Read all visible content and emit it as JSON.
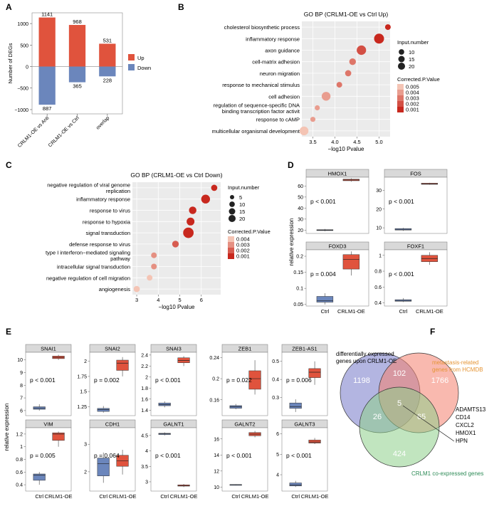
{
  "chart_data": [
    {
      "panel": "A",
      "type": "bar",
      "ylabel": "Number of DEGs",
      "categories": [
        "CRLM1-OE vs Anti",
        "CRLM1-OE vs Ctrl",
        "overlap"
      ],
      "series": [
        {
          "name": "Up",
          "values": [
            1141,
            968,
            531
          ],
          "color": "#E0533D"
        },
        {
          "name": "Down",
          "values": [
            -887,
            -365,
            -228
          ],
          "color": "#6B86BC"
        }
      ],
      "value_labels": {
        "up": [
          "1141",
          "968",
          "531"
        ],
        "down": [
          "887",
          "365",
          "228"
        ]
      },
      "yticks": [
        1000,
        500,
        0,
        -500,
        -1000
      ],
      "ytick_labels": [
        "1000",
        "500",
        "0",
        "−500",
        "−1000"
      ],
      "ylim": [
        -1100,
        1250
      ],
      "legend": "right"
    },
    {
      "panel": "B",
      "type": "scatter",
      "title": "GO BP (CRLM1-OE vs Ctrl Up)",
      "xlabel": "−log10 Pvalue",
      "xticks": [
        3.5,
        4.0,
        4.5,
        5.0
      ],
      "xtick_labels": [
        "3.5",
        "4.0",
        "4.5",
        "5.0"
      ],
      "xlim": [
        3.25,
        5.25
      ],
      "terms": [
        "cholesterol biosynthetic process",
        "inflammatory response",
        "axon guidance",
        "cell-matrix adhesion",
        "neuron migration",
        "response to mechanical stimulus",
        "cell adhesion",
        "regulation of sequence-specific DNA binding transcription factor activit",
        "response to cAMP",
        "multicellular organismal development"
      ],
      "term_lines": [
        [
          "cholesterol biosynthetic process"
        ],
        [
          "inflammatory response"
        ],
        [
          "axon guidance"
        ],
        [
          "cell-matrix adhesion"
        ],
        [
          "neuron migration"
        ],
        [
          "response to mechanical stimulus"
        ],
        [
          "cell adhesion"
        ],
        [
          "regulation of sequence-specific DNA",
          "binding transcription factor activit"
        ],
        [
          "response to cAMP"
        ],
        [
          "multicellular organismal development"
        ]
      ],
      "x": [
        5.2,
        5.0,
        4.6,
        4.4,
        4.3,
        4.1,
        3.8,
        3.6,
        3.5,
        3.3
      ],
      "size": [
        4,
        16,
        14,
        6,
        5,
        4,
        12,
        3,
        3,
        12
      ],
      "padj": [
        0.001,
        0.001,
        0.002,
        0.003,
        0.003,
        0.003,
        0.004,
        0.004,
        0.004,
        0.005
      ],
      "size_legend_title": "Input.number",
      "size_legend": [
        10,
        15,
        20
      ],
      "color_legend_title": "Corrected.P.Value",
      "color_legend": [
        "0.005",
        "0.004",
        "0.003",
        "0.002",
        "0.001"
      ]
    },
    {
      "panel": "C",
      "type": "scatter",
      "title": "GO BP (CRLM1-OE vs Ctrl Down)",
      "xlabel": "−log10 Pvalue",
      "xticks": [
        3,
        4,
        5,
        6
      ],
      "xtick_labels": [
        "3",
        "4",
        "5",
        "6"
      ],
      "xlim": [
        2.8,
        6.9
      ],
      "terms": [
        "negative regulation of viral genome replication",
        "inflammatory response",
        "response to virus",
        "response to hypoxia",
        "signal transduction",
        "defense response to virus",
        "type I interferon-mediated signaling pathway",
        "intracellular signal transduction",
        "negative regulation of cell migration",
        "angiogenesis"
      ],
      "term_lines": [
        [
          "negative regulation of viral genome",
          "replication"
        ],
        [
          "inflammatory response"
        ],
        [
          "response to virus"
        ],
        [
          "response to hypoxia"
        ],
        [
          "signal transduction"
        ],
        [
          "defense response to virus"
        ],
        [
          "type I interferon−mediated signaling",
          "pathway"
        ],
        [
          "intracellular signal transduction"
        ],
        [
          "negative regulation of cell migration"
        ],
        [
          "angiogenesis"
        ]
      ],
      "x": [
        6.6,
        6.2,
        5.6,
        5.5,
        5.4,
        4.8,
        3.8,
        3.8,
        3.6,
        3.0
      ],
      "size": [
        5,
        12,
        8,
        9,
        18,
        6,
        4,
        4,
        4,
        5
      ],
      "padj": [
        0.001,
        0.001,
        0.001,
        0.001,
        0.001,
        0.002,
        0.003,
        0.003,
        0.004,
        0.004
      ],
      "size_legend_title": "Input.number",
      "size_legend": [
        5,
        10,
        15,
        20
      ],
      "color_legend_title": "Corrected.P.Value",
      "color_legend": [
        "0.004",
        "0.003",
        "0.002",
        "0.001"
      ]
    },
    {
      "panel": "D",
      "type": "box",
      "ylabel": "relative expression",
      "groups": [
        "Ctrl",
        "CRLM1-OE"
      ],
      "colors": [
        "#6B86BC",
        "#E0533D"
      ],
      "genes": [
        {
          "name": "HMOX1",
          "p": "p < 0.001",
          "yticks": [
            20,
            30,
            40,
            50,
            60
          ],
          "ylim": [
            17,
            68
          ],
          "ctrl": [
            19,
            19.6,
            20,
            20.4,
            21
          ],
          "oe": [
            64,
            64.8,
            65.5,
            66.2,
            67
          ]
        },
        {
          "name": "FOS",
          "p": "p < 0.001",
          "yticks": [
            10,
            20,
            30
          ],
          "ylim": [
            7,
            37
          ],
          "ctrl": [
            8.4,
            8.8,
            9.2,
            9.6,
            10
          ],
          "oe": [
            33,
            33.2,
            33.5,
            33.8,
            34
          ]
        },
        {
          "name": "FOXD3",
          "p": "p = 0.004",
          "yticks": [
            0.05,
            0.1,
            0.15,
            0.2
          ],
          "ylim": [
            0.045,
            0.22
          ],
          "ctrl": [
            0.05,
            0.057,
            0.062,
            0.075,
            0.085
          ],
          "oe": [
            0.14,
            0.16,
            0.19,
            0.205,
            0.215
          ]
        },
        {
          "name": "FOXF1",
          "p": "p < 0.001",
          "yticks": [
            0.4,
            0.6,
            0.8,
            1.0
          ],
          "ylim": [
            0.36,
            1.07
          ],
          "ctrl": [
            0.41,
            0.42,
            0.43,
            0.44,
            0.46
          ],
          "oe": [
            0.88,
            0.92,
            0.96,
            1.0,
            1.04
          ]
        }
      ]
    },
    {
      "panel": "E",
      "type": "box",
      "ylabel": "relative expression",
      "groups": [
        "Ctrl",
        "CRLM1-OE"
      ],
      "colors": [
        "#6B86BC",
        "#E0533D"
      ],
      "genes": [
        {
          "name": "SNAI1",
          "p": "p < 0.001",
          "yticks": [
            6,
            7,
            8,
            9,
            10
          ],
          "ylim": [
            5.6,
            10.6
          ],
          "ctrl": [
            6.0,
            6.1,
            6.2,
            6.3,
            6.5
          ],
          "oe": [
            10.0,
            10.1,
            10.2,
            10.3,
            10.4
          ]
        },
        {
          "name": "SNAI2",
          "p": "p = 0.002",
          "yticks": [
            1.25,
            1.5,
            1.75,
            2.0
          ],
          "ylim": [
            1.1,
            2.15
          ],
          "ctrl": [
            1.15,
            1.17,
            1.2,
            1.22,
            1.26
          ],
          "oe": [
            1.75,
            1.85,
            1.97,
            2.02,
            2.07
          ]
        },
        {
          "name": "SNAI3",
          "p": "p < 0.001",
          "yticks": [
            1.4,
            1.6,
            1.8,
            2.0,
            2.2,
            2.4
          ],
          "ylim": [
            1.3,
            2.45
          ],
          "ctrl": [
            1.45,
            1.48,
            1.5,
            1.53,
            1.56
          ],
          "oe": [
            2.2,
            2.26,
            2.3,
            2.35,
            2.38
          ]
        },
        {
          "name": "ZEB1",
          "p": "p = 0.022",
          "yticks": [
            0.16,
            0.2,
            0.24
          ],
          "ylim": [
            0.13,
            0.25
          ],
          "ctrl": [
            0.142,
            0.144,
            0.147,
            0.149,
            0.152
          ],
          "oe": [
            0.17,
            0.18,
            0.2,
            0.215,
            0.235
          ]
        },
        {
          "name": "ZEB1-AS1",
          "p": "p = 0.006",
          "yticks": [
            0.3,
            0.4,
            0.5
          ],
          "ylim": [
            0.2,
            0.55
          ],
          "ctrl": [
            0.22,
            0.24,
            0.25,
            0.27,
            0.29
          ],
          "oe": [
            0.37,
            0.41,
            0.44,
            0.46,
            0.5
          ]
        },
        {
          "name": "VIM",
          "p": "p = 0.005",
          "yticks": [
            0.4,
            0.6,
            0.8,
            1.0,
            1.2
          ],
          "ylim": [
            0.3,
            1.3
          ],
          "ctrl": [
            0.4,
            0.47,
            0.55,
            0.57,
            0.6
          ],
          "oe": [
            1.0,
            1.1,
            1.2,
            1.22,
            1.24
          ]
        },
        {
          "name": "CDH1",
          "p": "p = 0.064",
          "yticks": [
            2,
            3
          ],
          "ylim": [
            1.3,
            3.6
          ],
          "ctrl": [
            1.6,
            1.85,
            2.3,
            2.5,
            2.7
          ],
          "oe": [
            1.9,
            2.2,
            2.4,
            2.6,
            2.8
          ]
        },
        {
          "name": "GALNT1",
          "p": "p < 0.001",
          "yticks": [
            3.0,
            3.5,
            4.0,
            4.5
          ],
          "ylim": [
            2.7,
            4.75
          ],
          "ctrl": [
            4.5,
            4.53,
            4.55,
            4.57,
            4.6
          ],
          "oe": [
            2.83,
            2.86,
            2.88,
            2.9,
            2.93
          ]
        },
        {
          "name": "GALNT2",
          "p": "p < 0.001",
          "yticks": [
            10,
            12,
            14,
            16
          ],
          "ylim": [
            9.5,
            17.4
          ],
          "ctrl": [
            10.2,
            10.25,
            10.3,
            10.32,
            10.35
          ],
          "oe": [
            16.2,
            16.4,
            16.6,
            16.8,
            17.0
          ]
        },
        {
          "name": "GALNT3",
          "p": "p < 0.001",
          "yticks": [
            4,
            5,
            6
          ],
          "ylim": [
            3.2,
            6.3
          ],
          "ctrl": [
            3.4,
            3.45,
            3.5,
            3.6,
            3.7
          ],
          "oe": [
            5.5,
            5.55,
            5.6,
            5.7,
            5.8
          ]
        }
      ]
    },
    {
      "panel": "F",
      "type": "venn",
      "sets": [
        {
          "name": "differentially expressed genes upon CRLM1-OE",
          "color": "#7478C8"
        },
        {
          "name": "metastasis-related genes from HCMDB",
          "color": "#F4806E"
        },
        {
          "name": "CRLM1 co-expressed genes",
          "color": "#8ED08A"
        }
      ],
      "set_labels": {
        "a": [
          "differentially expressed",
          "genes upon CRLM1-OE"
        ],
        "b": [
          "metastasis-related",
          "genes from HCMDB"
        ],
        "c": [
          "CRLM1 co-expressed genes"
        ]
      },
      "regions": {
        "a_only": "1198",
        "b_only": "1766",
        "c_only": "424",
        "ab": "102",
        "ac": "26",
        "bc": "65",
        "abc": "5"
      },
      "callout_genes": [
        "ADAMTS13",
        "CD14",
        "CXCL2",
        "HMOX1",
        "HPN"
      ]
    }
  ],
  "panel_letters": [
    "A",
    "B",
    "C",
    "D",
    "E",
    "F"
  ]
}
